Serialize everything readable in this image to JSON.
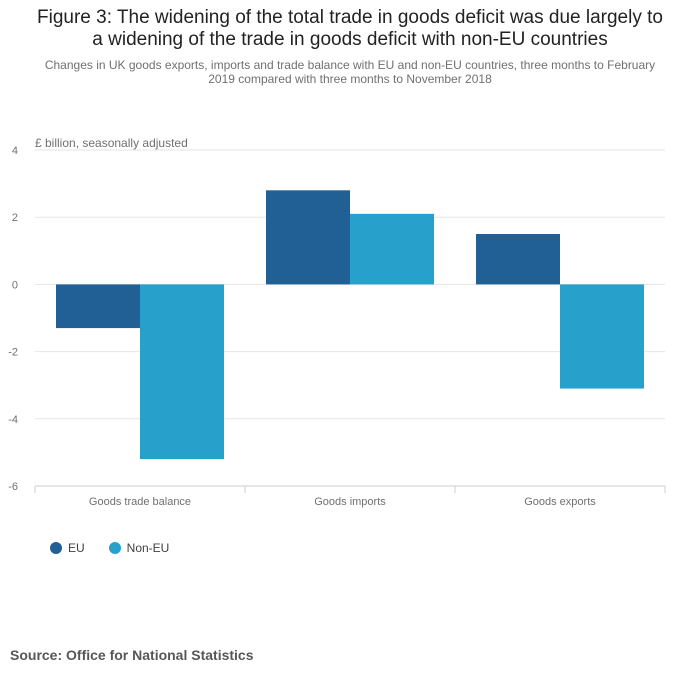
{
  "title_lines": [
    "Figure 3: The widening of the total trade in goods deficit was due largely to",
    "a widening of the trade in goods deficit with non-EU countries"
  ],
  "subtitle_lines": [
    "Changes in UK goods exports, imports and trade balance with EU and non-EU countries, three months to February",
    "2019 compared with three months to November 2018"
  ],
  "source": "Source: Office for National Statistics",
  "chart_data": {
    "type": "bar",
    "title": "Figure 3: The widening of the total trade in goods deficit was due largely to a widening of the trade in goods deficit with non-EU countries",
    "ylabel": "£ billion, seasonally adjusted",
    "xlabel": "",
    "categories": [
      "Goods trade balance",
      "Goods imports",
      "Goods exports"
    ],
    "series": [
      {
        "name": "EU",
        "color": "#206095",
        "values": [
          -1.3,
          2.8,
          1.5
        ]
      },
      {
        "name": "Non-EU",
        "color": "#27a0cc",
        "values": [
          -5.2,
          2.1,
          -3.1
        ]
      }
    ],
    "ylim": [
      -6,
      4
    ],
    "yticks": [
      "4",
      "2",
      "0",
      "-2",
      "-4",
      "-6"
    ],
    "ytick_values": [
      4,
      2,
      0,
      -2,
      -4,
      -6
    ],
    "grid": true,
    "legend": "bottom-left"
  }
}
